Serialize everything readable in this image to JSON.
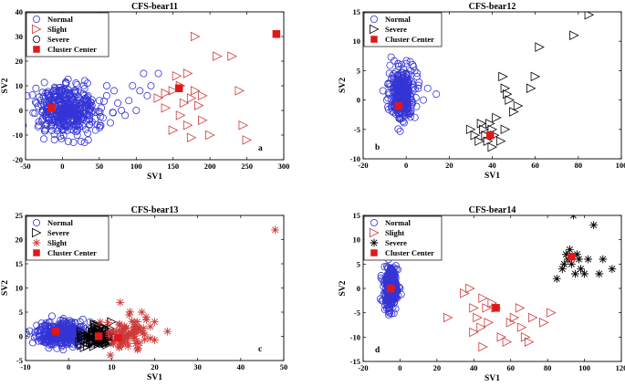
{
  "colors": {
    "Normal": "#3434d6",
    "Slight": "#cc3a3a",
    "Severe": "#000000",
    "Cluster Center": "#e01818"
  },
  "chart_data": [
    {
      "type": "scatter",
      "title": "CFS-bear11",
      "xlabel": "SV1",
      "ylabel": "SV2",
      "xlim": [
        -50,
        300
      ],
      "ylim": [
        -20,
        40
      ],
      "xticks": [
        -50,
        0,
        50,
        100,
        150,
        200,
        250,
        300
      ],
      "yticks": [
        -20,
        -10,
        0,
        10,
        20,
        30,
        40
      ],
      "panel_label": "a",
      "legend": [
        "Normal",
        "Slight",
        "Severe",
        "Cluster Center"
      ],
      "series": [
        {
          "name": "Normal",
          "marker": "circle",
          "cluster": {
            "cx": 5,
            "cy": 0,
            "sx": 20,
            "sy": 5,
            "n": 420
          },
          "points": [
            [
              40,
              2
            ],
            [
              50,
              4
            ],
            [
              60,
              6
            ],
            [
              55,
              -3
            ],
            [
              70,
              8
            ],
            [
              80,
              0
            ],
            [
              90,
              4
            ],
            [
              95,
              10
            ],
            [
              105,
              8
            ],
            [
              110,
              15
            ],
            [
              120,
              10
            ],
            [
              130,
              15
            ],
            [
              100,
              0
            ],
            [
              85,
              -2
            ],
            [
              65,
              -5
            ],
            [
              45,
              -8
            ],
            [
              35,
              -12
            ],
            [
              30,
              -13
            ],
            [
              20,
              -10
            ],
            [
              60,
              10
            ],
            [
              75,
              3
            ],
            [
              115,
              6
            ]
          ]
        },
        {
          "name": "Slight",
          "marker": "triangle-right",
          "points": [
            [
              130,
              5
            ],
            [
              140,
              7
            ],
            [
              150,
              8
            ],
            [
              160,
              10
            ],
            [
              170,
              15
            ],
            [
              175,
              5
            ],
            [
              180,
              8
            ],
            [
              185,
              2
            ],
            [
              190,
              -4
            ],
            [
              200,
              -10
            ],
            [
              210,
              22
            ],
            [
              230,
              22
            ],
            [
              240,
              8
            ],
            [
              245,
              -6
            ],
            [
              250,
              -12
            ],
            [
              180,
              30
            ],
            [
              150,
              -8
            ],
            [
              160,
              -2
            ],
            [
              170,
              -6
            ],
            [
              175,
              -11
            ],
            [
              190,
              6
            ],
            [
              155,
              14
            ],
            [
              140,
              1
            ],
            [
              165,
              3
            ]
          ]
        },
        {
          "name": "Cluster Center",
          "marker": "square",
          "points": [
            [
              -15,
              1
            ],
            [
              158,
              9
            ],
            [
              290,
              31
            ]
          ]
        }
      ]
    },
    {
      "type": "scatter",
      "title": "CFS-bear12",
      "xlabel": "SV1",
      "ylabel": "SV2",
      "xlim": [
        -20,
        100
      ],
      "ylim": [
        -10,
        15
      ],
      "xticks": [
        -20,
        0,
        20,
        40,
        60,
        80,
        100
      ],
      "yticks": [
        -10,
        -5,
        0,
        5,
        10,
        15
      ],
      "panel_label": "b",
      "legend": [
        "Normal",
        "Severe",
        "Cluster Center"
      ],
      "series": [
        {
          "name": "Normal",
          "marker": "circle",
          "cluster": {
            "cx": -2,
            "cy": 1,
            "sx": 2.8,
            "sy": 2.2,
            "n": 300
          },
          "points": [
            [
              2,
              5
            ],
            [
              3,
              6
            ],
            [
              4,
              5
            ],
            [
              5,
              4
            ],
            [
              6,
              3
            ],
            [
              1,
              -2
            ],
            [
              -3,
              -3
            ],
            [
              10,
              2
            ],
            [
              14,
              1
            ],
            [
              8,
              0
            ]
          ]
        },
        {
          "name": "Severe",
          "marker": "triangle-right",
          "points": [
            [
              30,
              -5
            ],
            [
              32,
              -6
            ],
            [
              34,
              -7
            ],
            [
              35,
              -4
            ],
            [
              36,
              -5
            ],
            [
              37,
              -6
            ],
            [
              38,
              -7
            ],
            [
              39,
              -4
            ],
            [
              40,
              -5
            ],
            [
              41,
              -6
            ],
            [
              42,
              -3
            ],
            [
              44,
              -7
            ],
            [
              45,
              4
            ],
            [
              46,
              2
            ],
            [
              47,
              1
            ],
            [
              48,
              0
            ],
            [
              50,
              -2
            ],
            [
              52,
              -1
            ],
            [
              58,
              2
            ],
            [
              60,
              4
            ],
            [
              62,
              9
            ],
            [
              78,
              11
            ],
            [
              85,
              14.5
            ],
            [
              46,
              -5
            ],
            [
              40,
              -8
            ]
          ]
        },
        {
          "name": "Cluster Center",
          "marker": "square",
          "points": [
            [
              -3.5,
              -1
            ],
            [
              39,
              -6
            ]
          ]
        }
      ]
    },
    {
      "type": "scatter",
      "title": "CFS-bear13",
      "xlabel": "SV1",
      "ylabel": "SV2",
      "xlim": [
        -10,
        50
      ],
      "ylim": [
        -5,
        25
      ],
      "xticks": [
        -10,
        0,
        10,
        20,
        30,
        40,
        50
      ],
      "yticks": [
        -5,
        0,
        5,
        10,
        15,
        20,
        25
      ],
      "panel_label": "c",
      "legend": [
        "Normal",
        "Severe",
        "Slight",
        "Cluster Center"
      ],
      "series": [
        {
          "name": "Normal",
          "marker": "circle",
          "cluster": {
            "cx": -2,
            "cy": 0.5,
            "sx": 2.8,
            "sy": 1.3,
            "n": 340
          },
          "points": []
        },
        {
          "name": "Severe",
          "marker": "triangle-right",
          "cluster": {
            "cx": 7,
            "cy": 0,
            "sx": 1.6,
            "sy": 1.1,
            "n": 110
          },
          "points": [
            [
              8,
              2
            ],
            [
              10,
              3
            ],
            [
              6,
              2.5
            ]
          ]
        },
        {
          "name": "Slight",
          "marker": "star",
          "cluster": {
            "cx": 14,
            "cy": 0.5,
            "sx": 2.6,
            "sy": 1.8,
            "n": 70
          },
          "points": [
            [
              12,
              7
            ],
            [
              17,
              5
            ],
            [
              18,
              4
            ],
            [
              20,
              3
            ],
            [
              23,
              1
            ],
            [
              16,
              3
            ],
            [
              19,
              2
            ],
            [
              48,
              22
            ]
          ]
        },
        {
          "name": "Cluster Center",
          "marker": "square",
          "points": [
            [
              -3,
              1
            ],
            [
              7,
              0
            ],
            [
              11.5,
              -0.3
            ]
          ]
        }
      ]
    },
    {
      "type": "scatter",
      "title": "CFS-bear14",
      "xlabel": "SV1",
      "ylabel": "SV2",
      "xlim": [
        -20,
        120
      ],
      "ylim": [
        -15,
        15
      ],
      "xticks": [
        -20,
        0,
        20,
        40,
        60,
        80,
        100,
        120
      ],
      "yticks": [
        -15,
        -10,
        -5,
        0,
        5,
        10,
        15
      ],
      "panel_label": "d",
      "legend": [
        "Normal",
        "Slight",
        "Severe",
        "Cluster Center"
      ],
      "series": [
        {
          "name": "Normal",
          "marker": "circle",
          "cluster": {
            "cx": -5,
            "cy": 0,
            "sx": 1.8,
            "sy": 2.2,
            "n": 300
          },
          "points": [
            [
              -2,
              4
            ],
            [
              -3,
              3
            ],
            [
              0,
              0
            ],
            [
              -6,
              -4
            ]
          ]
        },
        {
          "name": "Slight",
          "marker": "triangle-right",
          "points": [
            [
              26,
              -6
            ],
            [
              35,
              -1
            ],
            [
              38,
              0
            ],
            [
              40,
              -4
            ],
            [
              42,
              -6
            ],
            [
              44,
              -8
            ],
            [
              45,
              -2
            ],
            [
              47,
              -4
            ],
            [
              48,
              -7
            ],
            [
              50,
              -3
            ],
            [
              52,
              -4
            ],
            [
              55,
              -10
            ],
            [
              58,
              -11
            ],
            [
              60,
              -7
            ],
            [
              62,
              -6
            ],
            [
              65,
              -4
            ],
            [
              66,
              -8
            ],
            [
              68,
              -10
            ],
            [
              70,
              -11
            ],
            [
              72,
              -6
            ],
            [
              78,
              -7
            ],
            [
              82,
              -5
            ],
            [
              45,
              -12
            ],
            [
              40,
              -9
            ]
          ]
        },
        {
          "name": "Severe",
          "marker": "star",
          "points": [
            [
              85,
              2
            ],
            [
              88,
              4
            ],
            [
              90,
              7
            ],
            [
              91,
              6
            ],
            [
              92,
              8
            ],
            [
              93,
              5
            ],
            [
              94,
              15
            ],
            [
              96,
              7
            ],
            [
              98,
              4
            ],
            [
              100,
              3
            ],
            [
              102,
              6
            ],
            [
              105,
              13
            ],
            [
              108,
              3
            ],
            [
              110,
              6
            ],
            [
              115,
              4
            ],
            [
              95,
              3
            ],
            [
              89,
              5
            ],
            [
              97,
              6
            ]
          ]
        },
        {
          "name": "Cluster Center",
          "marker": "square",
          "points": [
            [
              -5,
              0
            ],
            [
              52,
              -4
            ],
            [
              93,
              6.5
            ]
          ]
        }
      ]
    }
  ]
}
